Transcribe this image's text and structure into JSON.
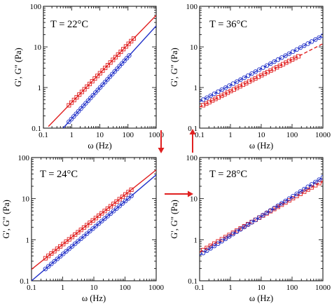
{
  "chart_data": [
    {
      "type": "line",
      "panel": "top-left",
      "annotation": "T = 22°C",
      "xlabel": "ω (Hz)",
      "ylabel": "G', G\" (Pa)",
      "xscale": "log",
      "yscale": "log",
      "xlim": [
        0.1,
        1000
      ],
      "ylim": [
        0.1,
        100
      ],
      "x_tick_labels": [
        "0.1",
        "1",
        "10",
        "100",
        "1000"
      ],
      "y_tick_labels": [
        "0.1",
        "1",
        "10",
        "100"
      ],
      "series": [
        {
          "marker": "square",
          "color": "#e02020",
          "line_style": "solid",
          "fit_range": [
            0.15,
            1000
          ],
          "fit_y_range": [
            0.11,
            60.0
          ],
          "data_range": [
            0.8,
            160
          ],
          "points": 26
        },
        {
          "marker": "circle",
          "color": "#1f2fc8",
          "line_style": "solid",
          "fit_range": [
            0.5,
            1000
          ],
          "fit_y_range": [
            0.1,
            33.0
          ],
          "data_range": [
            0.8,
            110
          ],
          "points": 26
        }
      ]
    },
    {
      "type": "line",
      "panel": "top-right",
      "annotation": "T = 36°C",
      "xlabel": "ω (Hz)",
      "ylabel": "G', G\" (Pa)",
      "xscale": "log",
      "yscale": "log",
      "xlim": [
        0.1,
        1000
      ],
      "ylim": [
        0.1,
        100
      ],
      "x_tick_labels": [
        "0.1",
        "1",
        "10",
        "100",
        "1000"
      ],
      "y_tick_labels": [
        "0.1",
        "1",
        "10",
        "100"
      ],
      "series": [
        {
          "marker": "square",
          "color": "#e02020",
          "line_style": "dashed",
          "fit_range": [
            0.1,
            1000
          ],
          "fit_y_range": [
            0.33,
            12.0
          ],
          "data_range": [
            0.13,
            160
          ],
          "points": 32
        },
        {
          "marker": "circle",
          "color": "#1f2fc8",
          "line_style": "dashed",
          "fit_range": [
            0.1,
            1000
          ],
          "fit_y_range": [
            0.45,
            19.0
          ],
          "data_range": [
            0.13,
            1000
          ],
          "points": 33
        }
      ]
    },
    {
      "type": "line",
      "panel": "bottom-left",
      "annotation": "T = 24°C",
      "xlabel": "ω (Hz)",
      "ylabel": "G', G\" (Pa)",
      "xscale": "log",
      "yscale": "log",
      "xlim": [
        0.1,
        1000
      ],
      "ylim": [
        0.1,
        100
      ],
      "x_tick_labels": [
        "0.1",
        "1",
        "10",
        "100",
        "1000"
      ],
      "y_tick_labels": [
        "0.1",
        "1",
        "10",
        "100"
      ],
      "series": [
        {
          "marker": "square",
          "color": "#e02020",
          "line_style": "solid",
          "fit_range": [
            0.1,
            1000
          ],
          "fit_y_range": [
            0.19,
            50.0
          ],
          "data_range": [
            0.28,
            160
          ],
          "points": 30
        },
        {
          "marker": "circle",
          "color": "#1f2fc8",
          "line_style": "solid",
          "fit_range": [
            0.1,
            1000
          ],
          "fit_y_range": [
            0.1,
            38.0
          ],
          "data_range": [
            0.28,
            160
          ],
          "points": 30
        }
      ]
    },
    {
      "type": "line",
      "panel": "bottom-right",
      "annotation": "T = 28°C",
      "xlabel": "ω (Hz)",
      "ylabel": "G', G\" (Pa)",
      "xscale": "log",
      "yscale": "log",
      "xlim": [
        0.1,
        1000
      ],
      "ylim": [
        0.1,
        100
      ],
      "x_tick_labels": [
        "0.1",
        "1",
        "10",
        "100",
        "1000"
      ],
      "y_tick_labels": [
        "0.1",
        "1",
        "10",
        "100"
      ],
      "series": [
        {
          "marker": "square",
          "color": "#e02020",
          "line_style": "dashed",
          "fit_range": [
            0.1,
            1000
          ],
          "fit_y_range": [
            0.5,
            27.0
          ],
          "data_range": [
            0.13,
            1000
          ],
          "points": 33
        },
        {
          "marker": "circle",
          "color": "#1f2fc8",
          "line_style": "dashed",
          "fit_range": [
            0.1,
            1000
          ],
          "fit_y_range": [
            0.42,
            33.0
          ],
          "data_range": [
            0.13,
            1000
          ],
          "points": 33
        }
      ]
    }
  ],
  "arrows": [
    {
      "from": "top-left",
      "to": "bottom-left",
      "direction": "down",
      "color": "#e02020"
    },
    {
      "from": "bottom-left",
      "to": "bottom-right",
      "direction": "right",
      "color": "#e02020"
    },
    {
      "from": "bottom-right",
      "to": "top-right",
      "direction": "up",
      "color": "#e02020"
    }
  ]
}
